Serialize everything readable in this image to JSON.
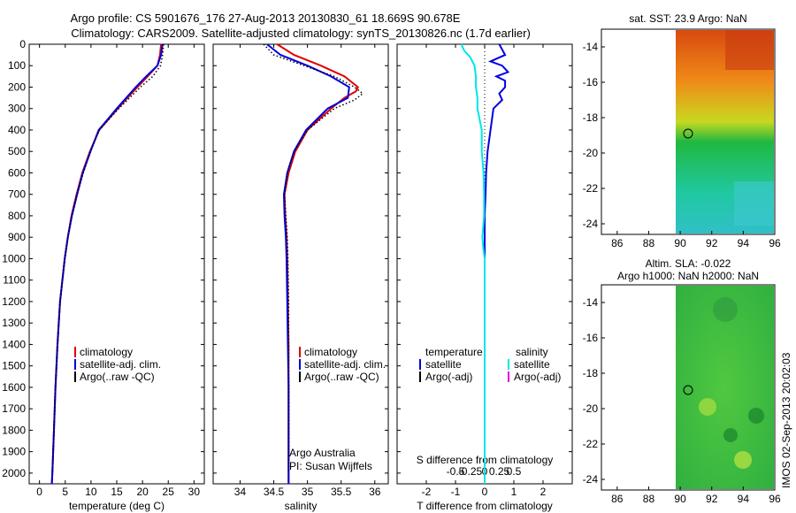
{
  "title": {
    "line1": "Argo profile: CS 5901676_176 27-Aug-2013 20130830_61 18.669S 90.678E",
    "line2": "Climatology: CARS2009. Satellite-adjusted climatology: synTS_20130826.nc (1.7d earlier)"
  },
  "colors": {
    "climatology": "#e00000",
    "satellite": "#0000e0",
    "argo": "#000000",
    "salinity_sat": "#00e6e6",
    "salinity_argo": "#e000e0"
  },
  "depth_axis": {
    "min": 0,
    "max": 2050,
    "ticks": [
      0,
      100,
      200,
      300,
      400,
      500,
      600,
      700,
      800,
      900,
      1000,
      1100,
      1200,
      1300,
      1400,
      1500,
      1600,
      1700,
      1800,
      1900,
      2000
    ]
  },
  "legend": {
    "climatology": "climatology",
    "satellite": "satellite-adj. clim.",
    "argo": "Argo(..raw -QC)"
  },
  "credit": {
    "line1": "Argo Australia",
    "line2": "PI: Susan Wijffels"
  },
  "chart_data": [
    {
      "type": "line",
      "xlabel": "temperature (deg C)",
      "xlim": [
        -2,
        32
      ],
      "xticks": [
        0,
        5,
        10,
        15,
        20,
        25,
        30
      ],
      "series": [
        {
          "name": "climatology",
          "depth": [
            0,
            50,
            100,
            150,
            200,
            300,
            400,
            500,
            600,
            700,
            800,
            900,
            1000,
            1200,
            1400,
            1600,
            1800,
            2000,
            2050
          ],
          "values": [
            23.6,
            23.4,
            22.9,
            21.0,
            19.0,
            15.2,
            11.6,
            9.8,
            8.3,
            7.2,
            6.2,
            5.5,
            4.9,
            4.0,
            3.5,
            3.1,
            2.8,
            2.5,
            2.4
          ]
        },
        {
          "name": "satellite-adj. clim.",
          "depth": [
            0,
            50,
            100,
            150,
            200,
            300,
            400,
            500,
            600,
            700,
            800,
            900,
            1000,
            1200,
            1400,
            1600,
            1800,
            2000,
            2050
          ],
          "values": [
            23.9,
            23.6,
            22.9,
            20.7,
            18.7,
            15.0,
            11.5,
            9.9,
            8.4,
            7.3,
            6.3,
            5.5,
            4.9,
            4.0,
            3.5,
            3.1,
            2.8,
            2.5,
            2.4
          ]
        },
        {
          "name": "Argo(..raw -QC)",
          "depth": [
            0,
            50,
            100,
            150,
            200,
            300,
            400,
            500,
            600,
            700,
            800,
            900,
            1000,
            1200,
            1400,
            1600,
            1800,
            2000
          ],
          "values": [
            24.1,
            23.9,
            23.5,
            22.0,
            19.6,
            15.4,
            11.6,
            9.9,
            8.5,
            7.3,
            6.3,
            5.5,
            4.9,
            4.0,
            3.5,
            3.1,
            2.8,
            2.5
          ]
        }
      ]
    },
    {
      "type": "line",
      "xlabel": "salinity",
      "xlim": [
        33.6,
        36.2
      ],
      "xticks": [
        34,
        34.5,
        35,
        35.5,
        36
      ],
      "series": [
        {
          "name": "climatology",
          "depth": [
            0,
            50,
            100,
            150,
            200,
            220,
            250,
            300,
            400,
            500,
            600,
            700,
            800,
            900,
            1000,
            1200,
            1400,
            1600,
            1800,
            2000,
            2050
          ],
          "values": [
            34.55,
            34.8,
            35.2,
            35.55,
            35.75,
            35.72,
            35.55,
            35.35,
            35.0,
            34.82,
            34.72,
            34.66,
            34.67,
            34.69,
            34.7,
            34.71,
            34.72,
            34.72,
            34.72,
            34.72,
            34.72
          ]
        },
        {
          "name": "satellite-adj. clim.",
          "depth": [
            0,
            50,
            100,
            150,
            200,
            250,
            300,
            400,
            500,
            600,
            700,
            800,
            900,
            1000,
            1200,
            1400,
            1600,
            1800,
            2000,
            2050
          ],
          "values": [
            34.4,
            34.6,
            35.0,
            35.35,
            35.62,
            35.6,
            35.3,
            34.98,
            34.8,
            34.7,
            34.65,
            34.66,
            34.68,
            34.69,
            34.7,
            34.71,
            34.72,
            34.72,
            34.72,
            34.72
          ]
        },
        {
          "name": "Argo(..raw -QC)",
          "depth": [
            0,
            50,
            100,
            150,
            200,
            230,
            260,
            300,
            400,
            500,
            600,
            700,
            800,
            900,
            1000,
            1200,
            1400,
            1600,
            1800,
            2000
          ],
          "values": [
            34.35,
            34.5,
            34.95,
            35.4,
            35.7,
            35.82,
            35.7,
            35.4,
            35.0,
            34.8,
            34.7,
            34.66,
            34.68,
            34.7,
            34.71,
            34.72,
            34.72,
            34.72,
            34.72,
            34.72
          ]
        }
      ]
    },
    {
      "type": "line",
      "xlabel": "T difference from climatology",
      "xlabel2": "S difference from climatology",
      "xlim": [
        -3,
        3
      ],
      "xticks": [
        -2,
        -1,
        0,
        1,
        2
      ],
      "xticklabels": [
        "-2",
        "-1",
        "0",
        "1",
        "2"
      ],
      "sticks": [
        -1,
        -0.5,
        0,
        0.5,
        1
      ],
      "sticklabels": [
        "-0.5",
        "-0.25",
        "0",
        "0.25",
        "0.5"
      ],
      "legend": {
        "temperature": "temperature",
        "salinity": "salinity",
        "sat": "satellite",
        "argo": "Argo(-adj)"
      },
      "series": [
        {
          "name": "temperature satellite",
          "depth": [
            0,
            50,
            80,
            100,
            130,
            150,
            170,
            200,
            230,
            260,
            300,
            400,
            500,
            600,
            700,
            800,
            900,
            1000,
            1200,
            1400,
            1600,
            1800,
            2000,
            2050
          ],
          "values": [
            0.5,
            0.7,
            0.2,
            0.6,
            0.8,
            0.4,
            0.7,
            0.7,
            0.5,
            0.6,
            0.3,
            0.2,
            0.1,
            0.05,
            0.03,
            0.0,
            0.0,
            0.0,
            0.0,
            0.0,
            0.0,
            0.0,
            0.0,
            0.0
          ]
        },
        {
          "name": "salinity satellite",
          "depth": [
            0,
            30,
            60,
            100,
            150,
            200,
            250,
            300,
            400,
            500,
            600,
            700,
            800,
            900,
            950,
            1000,
            1100,
            1200,
            1400,
            1600,
            1800,
            2000,
            2050
          ],
          "values": [
            -0.8,
            -0.7,
            -0.5,
            -0.35,
            -0.3,
            -0.3,
            -0.25,
            -0.25,
            -0.1,
            -0.1,
            -0.04,
            -0.02,
            -0.02,
            -0.08,
            -0.05,
            0.0,
            0.0,
            0.0,
            0.0,
            0.0,
            0.0,
            0.0,
            0.0
          ]
        }
      ]
    }
  ],
  "maps": [
    {
      "title": "sat. SST: 23.9 Argo: NaN",
      "xticks": [
        86,
        88,
        90,
        92,
        94,
        96
      ],
      "yticks": [
        -14,
        -16,
        -18,
        -20,
        -22,
        -24
      ]
    },
    {
      "title_line1": "Altim. SLA: -0.022",
      "title_line2": "Argo h1000: NaN h2000: NaN",
      "xticks": [
        86,
        88,
        90,
        92,
        94,
        96
      ],
      "yticks": [
        -14,
        -16,
        -18,
        -20,
        -22,
        -24
      ]
    }
  ],
  "timestamp": "IMOS 02-Sep-2013 20:02:03"
}
